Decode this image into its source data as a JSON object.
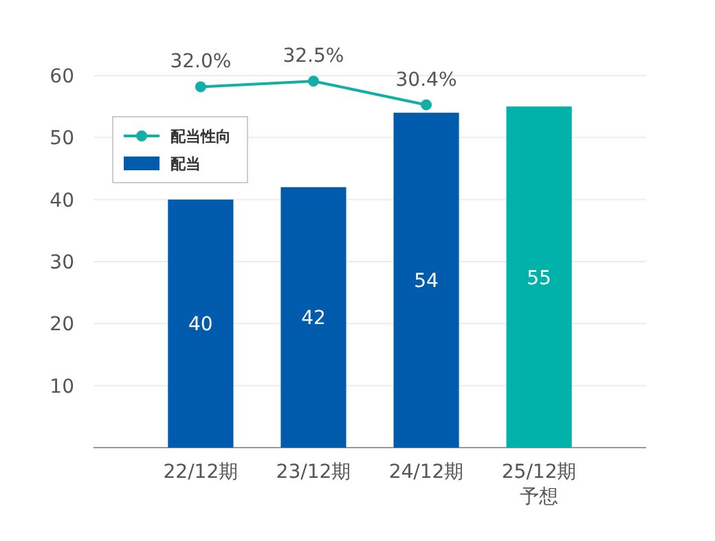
{
  "chart_data": {
    "type": "bar",
    "categories": [
      "22/12期",
      "23/12期",
      "24/12期",
      "25/12期予想"
    ],
    "ylim": [
      0,
      60
    ],
    "yticks": [
      {
        "value": 0,
        "label": null
      },
      10,
      20,
      30,
      40,
      50,
      60
    ],
    "grid": "y",
    "legend": "top left",
    "y2lim": [
      0,
      33
    ],
    "series": [
      {
        "name": "配当",
        "values": [
          40,
          42,
          54,
          55
        ],
        "colors": [
          "#005bac",
          "#005bac",
          "#005bac",
          "#00b2a9"
        ],
        "color": "#005bac",
        "data_labels": true
      },
      {
        "name": "配当性向",
        "type": "line",
        "axis": "y2",
        "color": "#13aea6",
        "marker": "circle",
        "values": [
          32.0,
          32.5,
          30.4,
          null
        ],
        "value_labels": [
          "32.0%",
          "32.5%",
          "30.4%",
          null
        ]
      }
    ]
  }
}
